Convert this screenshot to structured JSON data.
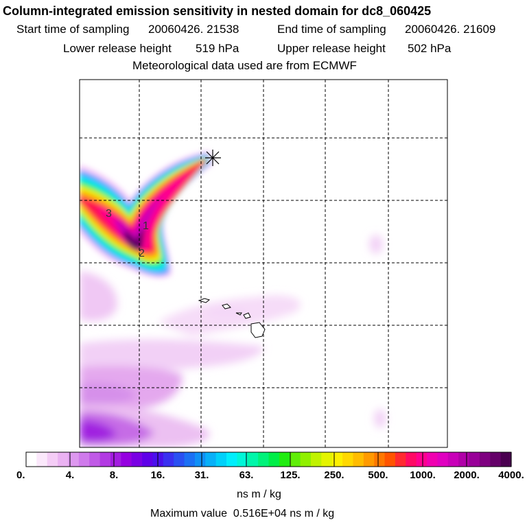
{
  "header": {
    "title": "Column-integrated emission sensitivity in nested domain for dc8_060425",
    "start_label": "Start time of sampling",
    "start_value": "20060426. 21538",
    "end_label": "End time of sampling",
    "end_value": "20060426. 21609",
    "lower_label": "Lower release height",
    "lower_value": "519 hPa",
    "upper_label": "Upper release height",
    "upper_value": "502 hPa",
    "met_line": "Meteorological data used are from ECMWF"
  },
  "map": {
    "plume_labels": [
      "3",
      "1",
      "2"
    ],
    "release_marker": "asterisk-marker"
  },
  "colorbar": {
    "tick_labels": [
      "0.",
      "4.",
      "8.",
      "16.",
      "31.",
      "63.",
      "125.",
      "250.",
      "500.",
      "1000.",
      "2000.",
      "4000."
    ],
    "colors": [
      "#ffffff",
      "#fbe8fb",
      "#f4ccf6",
      "#eab2f2",
      "#dd98ef",
      "#cf7aeb",
      "#c05ae6",
      "#b23ae2",
      "#a31ce0",
      "#9500e0",
      "#7a00e4",
      "#5f00e8",
      "#4a10ec",
      "#3a30f0",
      "#2a50f2",
      "#1c70f4",
      "#1090f6",
      "#08b0f8",
      "#00d0fa",
      "#00eefc",
      "#00f6d8",
      "#00f6aa",
      "#00f27a",
      "#00ee48",
      "#20ec10",
      "#60ee08",
      "#90f000",
      "#c0f200",
      "#e4f400",
      "#fcf000",
      "#ffd800",
      "#ffbc00",
      "#ff9a00",
      "#ff7800",
      "#ff5400",
      "#ff2a30",
      "#ff0a64",
      "#ff0090",
      "#f000b0",
      "#e000c0",
      "#c800b8",
      "#b000a8",
      "#980098",
      "#7e0080",
      "#640068",
      "#4a0050"
    ],
    "unit": "ns m / kg",
    "max_value_line": "Maximum value  0.516E+04 ns m / kg"
  }
}
